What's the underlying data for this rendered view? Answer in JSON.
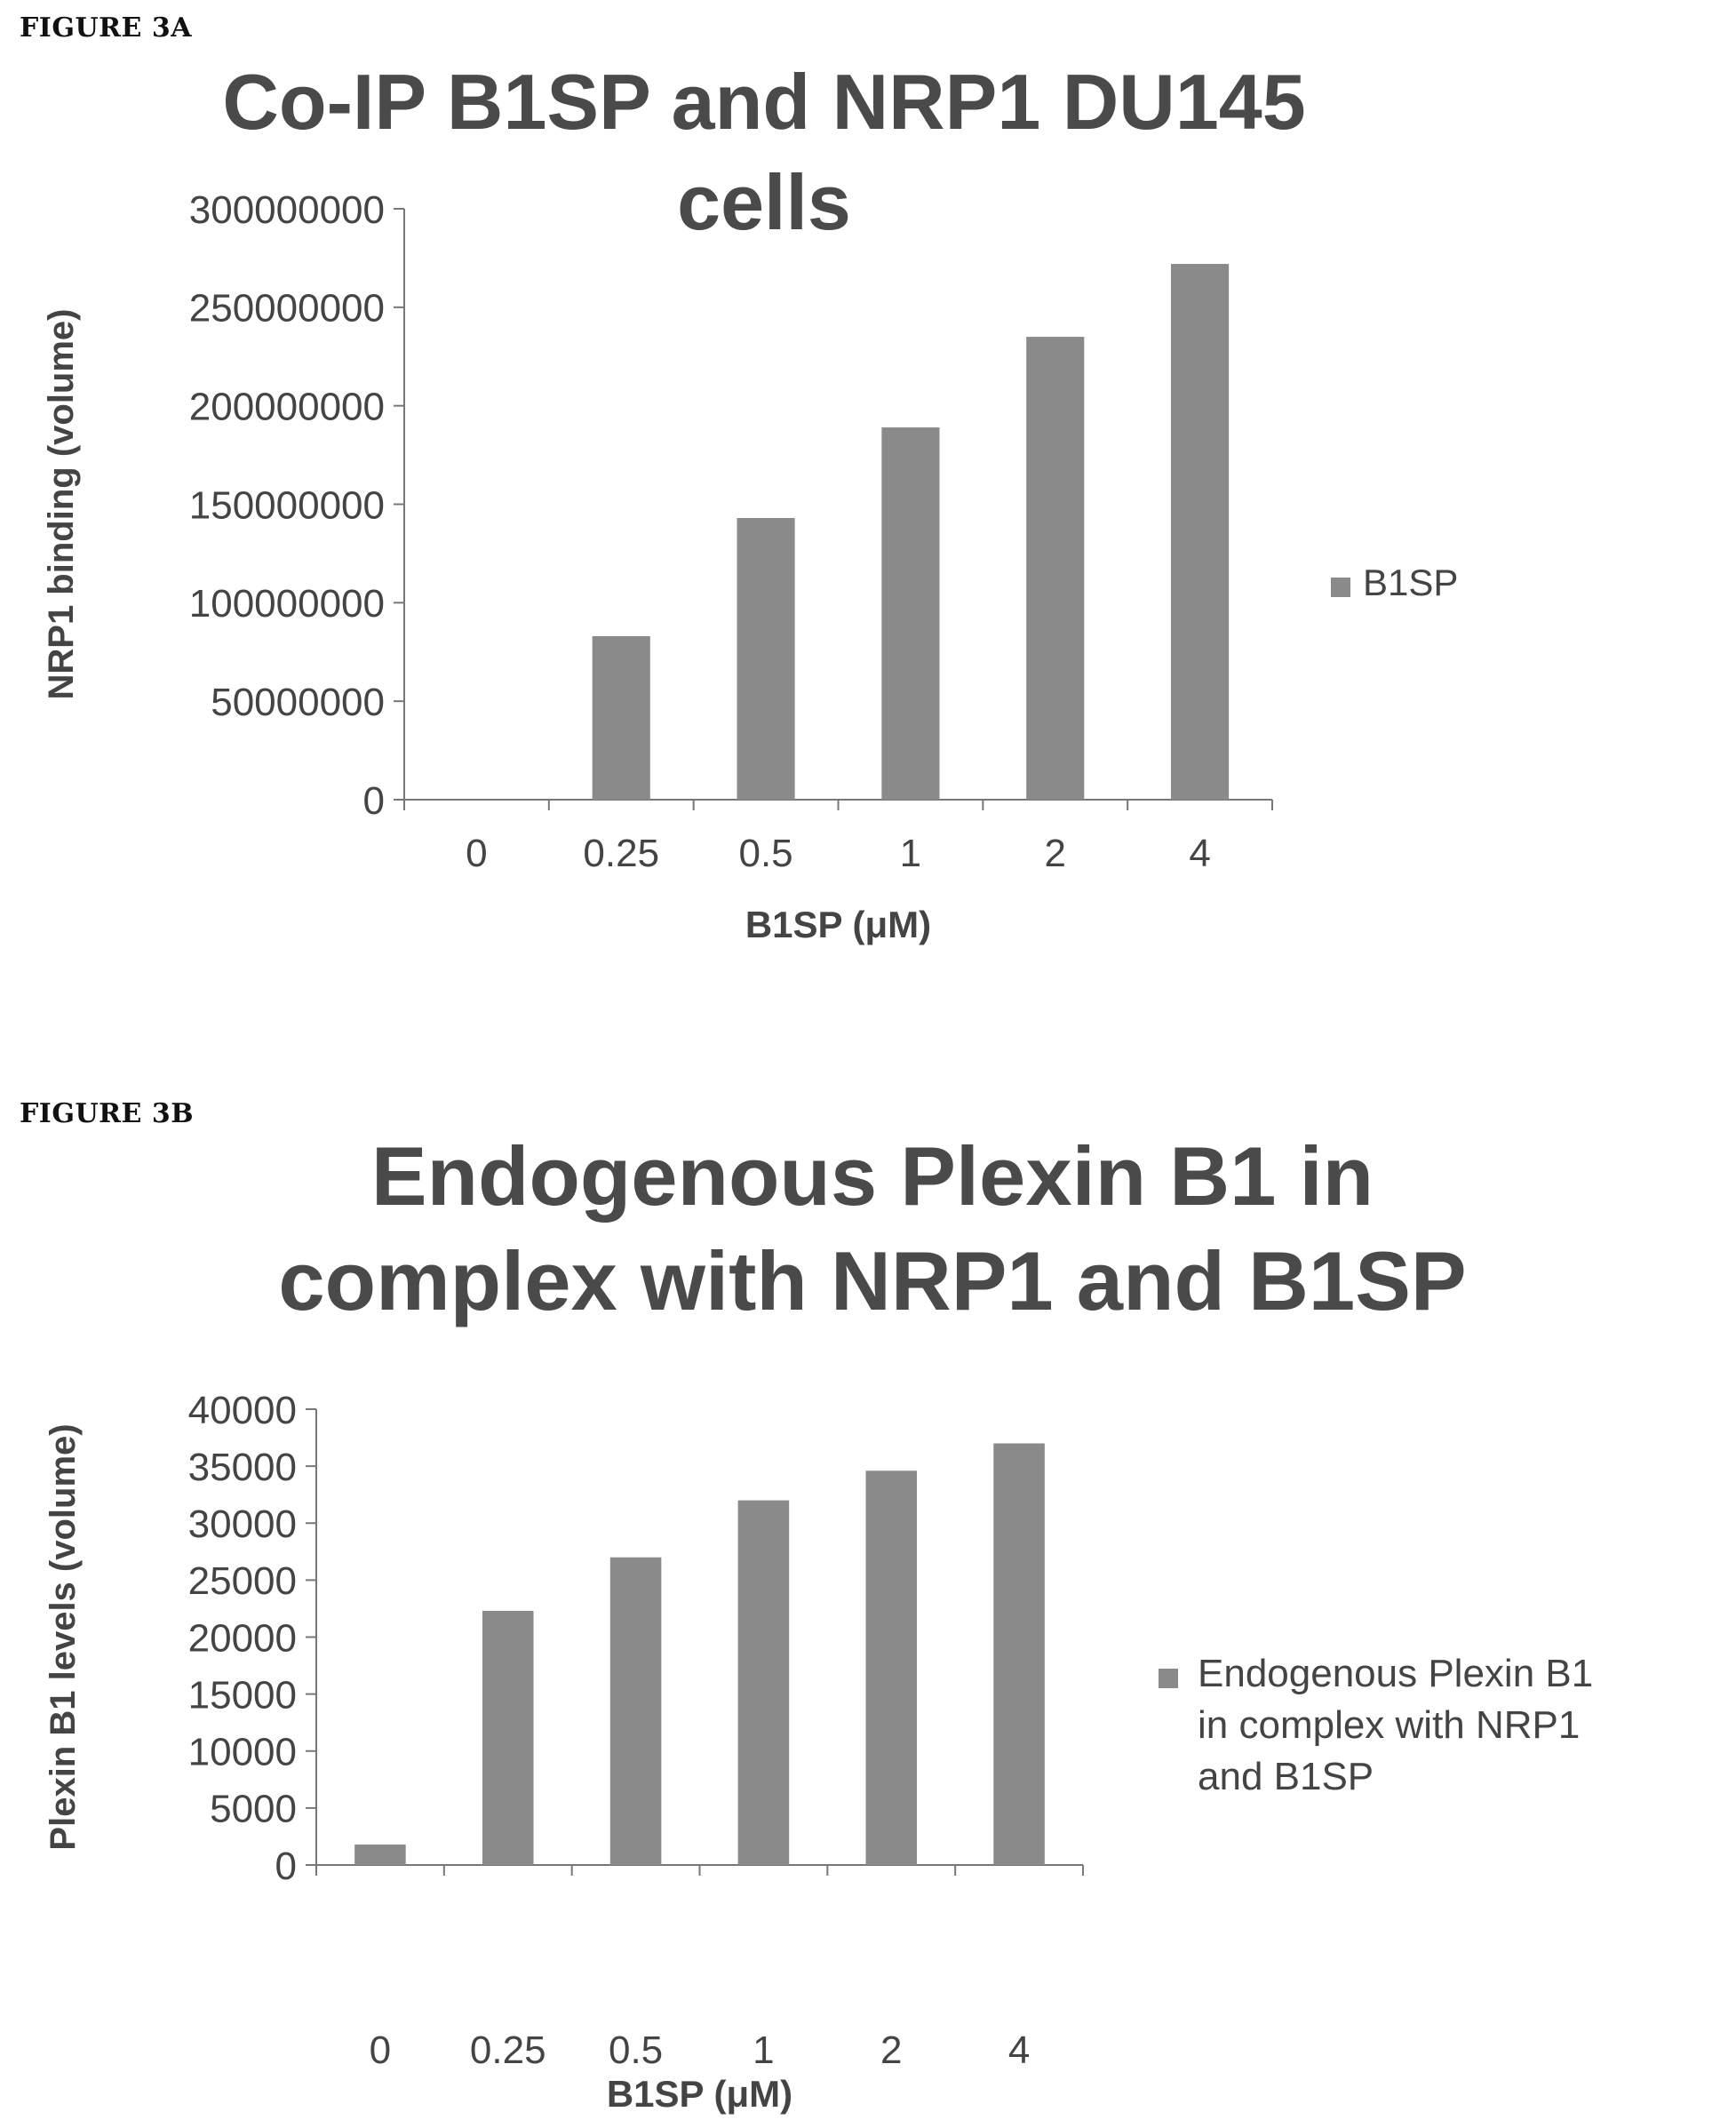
{
  "figure_a": {
    "label": "FIGURE 3A"
  },
  "figure_b": {
    "label": "FIGURE 3B"
  },
  "colors": {
    "bar": "#8a8a8a",
    "axis": "#777777",
    "text": "#444444",
    "title": "#4a4a4a"
  },
  "chart_data": [
    {
      "type": "bar",
      "title_lines": [
        "Co-IP B1SP and NRP1 DU145",
        "cells"
      ],
      "xlabel": "B1SP (μM)",
      "ylabel": "NRP1 binding (volume)",
      "categories": [
        "0",
        "0.25",
        "0.5",
        "1",
        "2",
        "4"
      ],
      "series": [
        {
          "name": "B1SP",
          "values": [
            0,
            83000000,
            143000000,
            189000000,
            235000000,
            272000000
          ]
        }
      ],
      "ylim": [
        0,
        300000000
      ],
      "yticks": [
        "0",
        "50000000",
        "100000000",
        "150000000",
        "200000000",
        "250000000",
        "300000000"
      ],
      "legend_lines": [
        "B1SP"
      ],
      "legend_position": "right",
      "grid": false
    },
    {
      "type": "bar",
      "title_lines": [
        "Endogenous Plexin B1 in",
        "complex with NRP1 and B1SP"
      ],
      "xlabel": "B1SP (μM)",
      "ylabel": "Plexin B1 levels (volume)",
      "categories": [
        "0",
        "0.25",
        "0.5",
        "1",
        "2",
        "4"
      ],
      "series": [
        {
          "name": "Endogenous Plexin B1 in complex with NRP1 and B1SP",
          "values": [
            1800,
            22300,
            27000,
            32000,
            34600,
            37000
          ]
        }
      ],
      "ylim": [
        0,
        40000
      ],
      "yticks": [
        "0",
        "5000",
        "10000",
        "15000",
        "20000",
        "25000",
        "30000",
        "35000",
        "40000"
      ],
      "legend_lines": [
        "Endogenous Plexin B1",
        "in complex with NRP1",
        "and B1SP"
      ],
      "legend_position": "right",
      "grid": false
    }
  ]
}
